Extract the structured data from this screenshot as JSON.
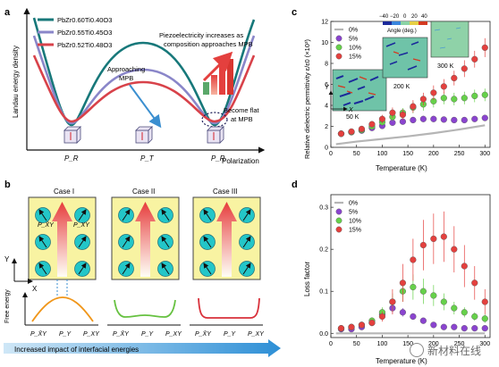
{
  "panels": {
    "a": {
      "label": "a",
      "legend": [
        "PbZr0.60Ti0.40O3",
        "PbZr0.55Ti0.45O3",
        "PbZr0.52Ti0.48O3"
      ],
      "legend_colors": [
        "#17787a",
        "#8a86c9",
        "#d8424a"
      ],
      "ylabel": "Landau energy density",
      "xlabel": "Polarization",
      "xticks": [
        "P_R",
        "P_T",
        "P_R"
      ],
      "annotations": {
        "piezo_line1": "Piezoelectricity increases as",
        "piezo_line2": "composition approaches MPB",
        "approaching_line1": "Approaching",
        "approaching_line2": "MPB",
        "flat_line1": "Become flat",
        "flat_line2": "at MPB"
      }
    },
    "b": {
      "label": "b",
      "cases": [
        "Case I",
        "Case II",
        "Case III"
      ],
      "axis_y": "Y",
      "axis_x": "X",
      "pol_labels": [
        "P_X̄Y",
        "P_XY"
      ],
      "free_energy_label": "Free energy",
      "xticks": [
        "P_X̄Y",
        "P_Y",
        "P_XY"
      ],
      "arrow_label": "Increased impact of interfacial energies"
    },
    "c": {
      "label": "c",
      "ylabel": "Relative dielectric permittivity ε/ε0 (×10³)",
      "xlabel": "Temperature (K)",
      "colorbar_title": "Angle (deg.)",
      "colorbar_ticks": [
        "−40",
        "−20",
        "0",
        "20",
        "40"
      ],
      "inset_labels": [
        "50 K",
        "200 K",
        "300 K"
      ],
      "inset_axis_y": "Y",
      "inset_axis_x": "X"
    },
    "d": {
      "label": "d",
      "ylabel": "Loss factor",
      "xlabel": "Temperature (K)"
    }
  },
  "chart_data": [
    {
      "type": "scatter",
      "panel": "c",
      "xlabel": "Temperature (K)",
      "ylabel": "Relative dielectric permittivity ε/ε0 (×10³)",
      "xlim": [
        0,
        310
      ],
      "ylim": [
        0,
        12
      ],
      "xticks": [
        0,
        50,
        100,
        150,
        200,
        250,
        300
      ],
      "yticks": [
        0,
        2,
        4,
        6,
        8,
        10,
        12
      ],
      "legend_position": "top-left",
      "series": [
        {
          "name": "0%",
          "color": "#b5b5b5",
          "kind": "line",
          "x": [
            10,
            50,
            100,
            150,
            200,
            250,
            300
          ],
          "y": [
            0.3,
            0.55,
            0.8,
            1.05,
            1.35,
            1.7,
            2.1
          ]
        },
        {
          "name": "5%",
          "color": "#8a44cf",
          "kind": "points",
          "x": [
            20,
            40,
            60,
            80,
            100,
            120,
            140,
            160,
            180,
            200,
            220,
            240,
            260,
            280,
            300
          ],
          "y": [
            1.3,
            1.45,
            1.6,
            1.85,
            2.05,
            2.35,
            2.45,
            2.6,
            2.7,
            2.7,
            2.65,
            2.6,
            2.6,
            2.7,
            2.8
          ],
          "err": [
            0.12,
            0.12,
            0.15,
            0.15,
            0.2,
            0.25,
            0.25,
            0.3,
            0.3,
            0.3,
            0.25,
            0.25,
            0.2,
            0.2,
            0.2
          ]
        },
        {
          "name": "10%",
          "color": "#66d14a",
          "kind": "points",
          "x": [
            20,
            40,
            60,
            80,
            100,
            120,
            140,
            160,
            180,
            200,
            220,
            240,
            260,
            280,
            300
          ],
          "y": [
            1.3,
            1.45,
            1.65,
            2.0,
            2.4,
            2.9,
            3.3,
            3.8,
            4.1,
            4.4,
            4.7,
            4.6,
            4.7,
            4.9,
            5.0
          ],
          "err": [
            0.15,
            0.15,
            0.2,
            0.25,
            0.3,
            0.4,
            0.45,
            0.55,
            0.6,
            0.6,
            0.6,
            0.6,
            0.6,
            0.6,
            0.6
          ]
        },
        {
          "name": "15%",
          "color": "#e4403e",
          "kind": "points",
          "x": [
            20,
            40,
            60,
            80,
            100,
            120,
            140,
            160,
            180,
            200,
            220,
            240,
            260,
            280,
            300
          ],
          "y": [
            1.3,
            1.5,
            1.75,
            2.2,
            2.7,
            3.3,
            3.1,
            3.9,
            4.6,
            5.2,
            5.8,
            6.6,
            7.5,
            8.4,
            9.5
          ],
          "err": [
            0.15,
            0.2,
            0.25,
            0.3,
            0.4,
            0.5,
            0.5,
            0.6,
            0.6,
            0.7,
            0.7,
            0.7,
            0.8,
            0.8,
            0.9
          ]
        }
      ]
    },
    {
      "type": "scatter",
      "panel": "d",
      "xlabel": "Temperature (K)",
      "ylabel": "Loss factor",
      "xlim": [
        0,
        310
      ],
      "ylim": [
        -0.01,
        0.33
      ],
      "xticks": [
        0,
        50,
        100,
        150,
        200,
        250,
        300
      ],
      "yticks": [
        0.0,
        0.1,
        0.2,
        0.3
      ],
      "legend_position": "top-left",
      "series": [
        {
          "name": "0%",
          "color": "#b5b5b5",
          "kind": "line",
          "x": [
            10,
            100,
            200,
            300
          ],
          "y": [
            0.0,
            0.0,
            0.0,
            0.0
          ]
        },
        {
          "name": "5%",
          "color": "#8a44cf",
          "kind": "points",
          "x": [
            20,
            40,
            60,
            80,
            100,
            120,
            140,
            160,
            180,
            200,
            220,
            240,
            260,
            280,
            300
          ],
          "y": [
            0.01,
            0.01,
            0.015,
            0.025,
            0.045,
            0.06,
            0.05,
            0.04,
            0.03,
            0.02,
            0.015,
            0.015,
            0.012,
            0.012,
            0.012
          ],
          "err": [
            0.003,
            0.003,
            0.004,
            0.005,
            0.01,
            0.012,
            0.01,
            0.008,
            0.006,
            0.005,
            0.004,
            0.004,
            0.003,
            0.003,
            0.003
          ]
        },
        {
          "name": "10%",
          "color": "#66d14a",
          "kind": "points",
          "x": [
            20,
            40,
            60,
            80,
            100,
            120,
            140,
            160,
            180,
            200,
            220,
            240,
            260,
            280,
            300
          ],
          "y": [
            0.012,
            0.015,
            0.02,
            0.03,
            0.05,
            0.075,
            0.1,
            0.11,
            0.1,
            0.09,
            0.075,
            0.06,
            0.05,
            0.04,
            0.035
          ],
          "err": [
            0.004,
            0.004,
            0.005,
            0.008,
            0.012,
            0.02,
            0.025,
            0.03,
            0.03,
            0.025,
            0.02,
            0.015,
            0.012,
            0.01,
            0.01
          ]
        },
        {
          "name": "15%",
          "color": "#e4403e",
          "kind": "points",
          "x": [
            20,
            40,
            60,
            80,
            100,
            120,
            140,
            160,
            180,
            200,
            220,
            240,
            260,
            280,
            300
          ],
          "y": [
            0.012,
            0.015,
            0.02,
            0.025,
            0.04,
            0.075,
            0.12,
            0.175,
            0.21,
            0.225,
            0.23,
            0.2,
            0.16,
            0.12,
            0.075
          ],
          "err": [
            0.004,
            0.004,
            0.005,
            0.008,
            0.012,
            0.03,
            0.045,
            0.05,
            0.06,
            0.06,
            0.06,
            0.055,
            0.05,
            0.04,
            0.03
          ]
        }
      ]
    }
  ],
  "watermark": {
    "text": "新材料在线"
  }
}
